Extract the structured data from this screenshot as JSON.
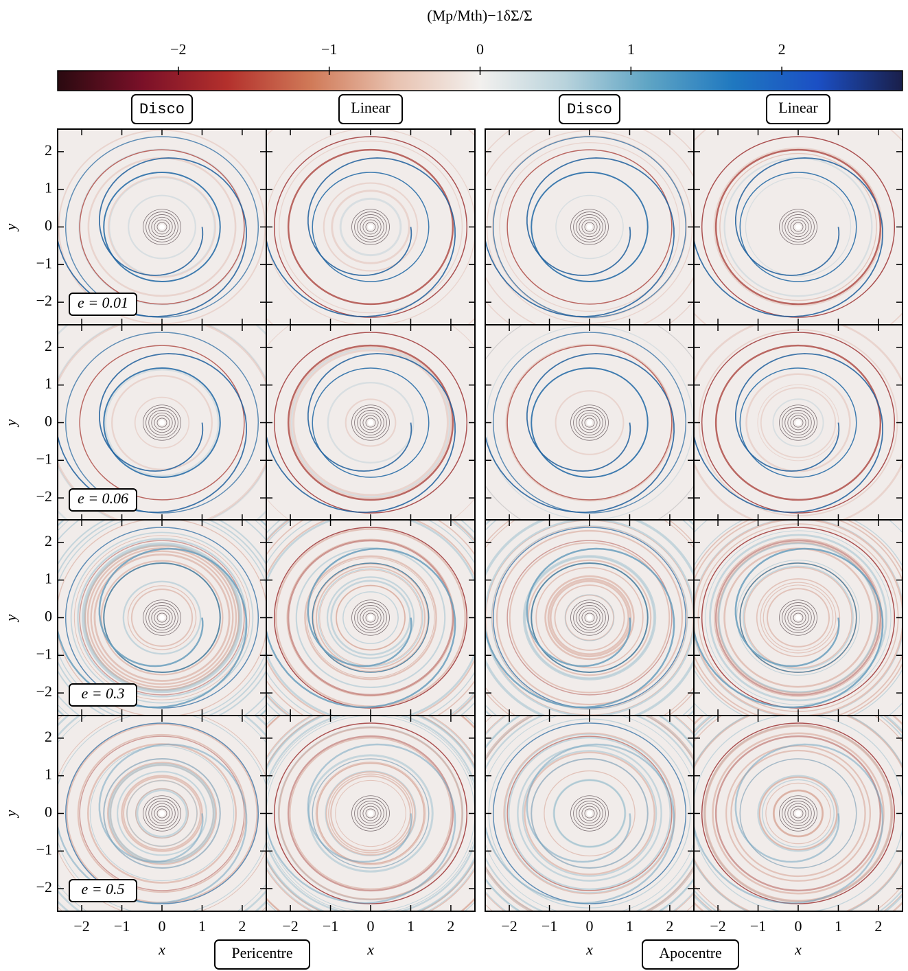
{
  "chart_data": {
    "type": "heatmap",
    "colorbar": {
      "label": "(Mp/Mth)−1δΣ/Σ",
      "lim": [
        -2.8,
        2.8
      ],
      "ticks": [
        {
          "value": -2,
          "label": "−2"
        },
        {
          "value": -1,
          "label": "−1"
        },
        0,
        1,
        2
      ],
      "colormap": [
        "#2a0a10",
        "#7a1028",
        "#b3302c",
        "#d07a58",
        "#e8c2b0",
        "#f2f0ee",
        "#b9d3dc",
        "#5ea4c4",
        "#1f78c0",
        "#1b4fc4",
        "#1a1f4a"
      ]
    },
    "column_titles": [
      "Disco",
      "Linear",
      "Disco",
      "Linear"
    ],
    "group_titles": [
      "Pericentre",
      "Apocentre"
    ],
    "row_labels": [
      "e = 0.01",
      "e = 0.06",
      "e = 0.3",
      "e = 0.5"
    ],
    "xlabel": "x",
    "ylabel": "y",
    "xlim": [
      -2.6,
      2.6
    ],
    "ylim": [
      -2.6,
      2.6
    ],
    "xticks": [
      {
        "value": -2,
        "label": "−2"
      },
      {
        "value": -1,
        "label": "−1"
      },
      0,
      1,
      2
    ],
    "yticks": [
      {
        "value": -2,
        "label": "−2"
      },
      {
        "value": -1,
        "label": "−1"
      },
      0,
      1,
      2
    ]
  }
}
